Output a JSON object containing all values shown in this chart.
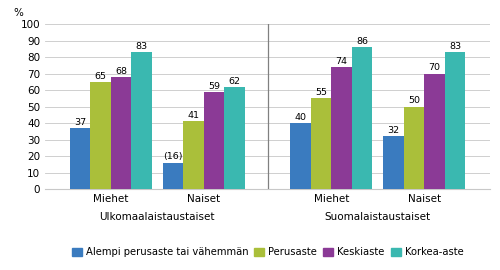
{
  "groups": [
    {
      "label": "Miehet",
      "section": "Ulkomaalaistaustaiset",
      "values": [
        37,
        65,
        68,
        83
      ],
      "bar_labels": [
        "37",
        "65",
        "68",
        "83"
      ]
    },
    {
      "label": "Naiset",
      "section": "Ulkomaalaistaustaiset",
      "values": [
        16,
        41,
        59,
        62
      ],
      "bar_labels": [
        "(16)",
        "41",
        "59",
        "62"
      ]
    },
    {
      "label": "Miehet",
      "section": "Suomalaistaustaiset",
      "values": [
        40,
        55,
        74,
        86
      ],
      "bar_labels": [
        "40",
        "55",
        "74",
        "86"
      ]
    },
    {
      "label": "Naiset",
      "section": "Suomalaistaustaiset",
      "values": [
        32,
        50,
        70,
        83
      ],
      "bar_labels": [
        "32",
        "50",
        "70",
        "83"
      ]
    }
  ],
  "colors": [
    "#3a7bbf",
    "#aabf3a",
    "#8b3a96",
    "#3ab8b0"
  ],
  "legend_labels": [
    "Alempi perusaste tai vähemmän",
    "Perusaste",
    "Keskiaste",
    "Korkea-aste"
  ],
  "ylim": [
    0,
    100
  ],
  "yticks": [
    0,
    10,
    20,
    30,
    40,
    50,
    60,
    70,
    80,
    90,
    100
  ],
  "ylabel": "%",
  "section_labels": [
    "Ulkomaalaistaustaiset",
    "Suomalaistaustaiset"
  ],
  "group_labels": [
    "Miehet",
    "Naiset",
    "Miehet",
    "Naiset"
  ],
  "bar_width": 0.21,
  "background_color": "#ffffff",
  "grid_color": "#c8c8c8",
  "label_fontsize": 6.8,
  "axis_fontsize": 7.5,
  "section_fontsize": 7.5,
  "legend_fontsize": 7.2
}
